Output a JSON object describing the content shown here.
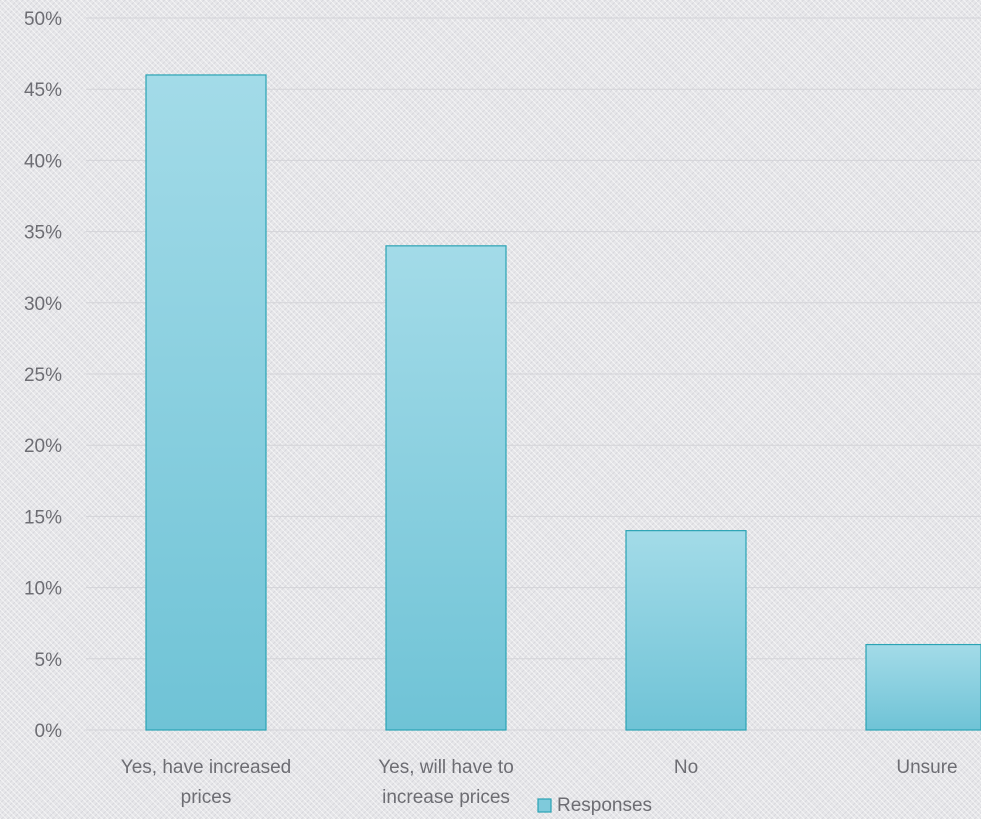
{
  "chart_data": {
    "type": "bar",
    "categories": [
      [
        "Yes, have increased",
        "prices"
      ],
      [
        "Yes, will have to",
        "increase prices"
      ],
      [
        "No"
      ],
      [
        "Unsure"
      ]
    ],
    "series": [
      {
        "name": "Responses",
        "values": [
          46,
          34,
          14,
          6
        ]
      }
    ],
    "y_ticks": [
      "0%",
      "5%",
      "10%",
      "15%",
      "20%",
      "25%",
      "30%",
      "35%",
      "40%",
      "45%",
      "50%"
    ],
    "ylim": [
      0,
      50
    ],
    "grid": true,
    "legend_position": "bottom",
    "colors": {
      "bar_top": "#a3dbe8",
      "bar_bottom": "#6fc3d6",
      "bar_stroke": "#2aa3b4",
      "legend_fill": "#7fcadb"
    }
  }
}
